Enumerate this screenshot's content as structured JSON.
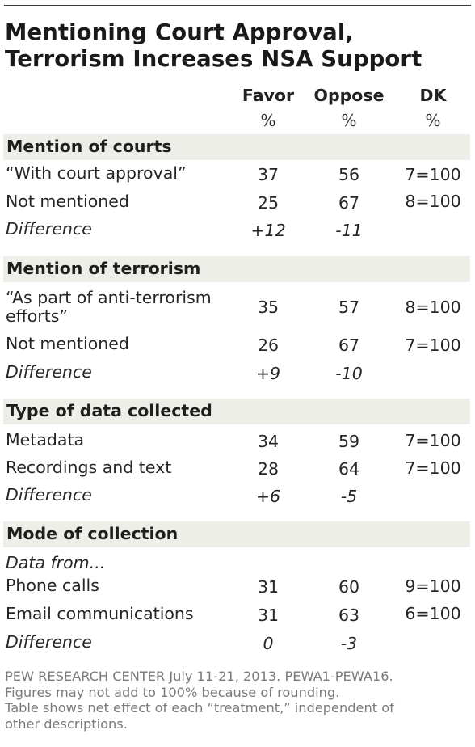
{
  "title": {
    "line1": "Mentioning Court Approval,",
    "line2": "Terrorism Increases NSA Support"
  },
  "columns": {
    "favor": "Favor",
    "oppose": "Oppose",
    "dk": "DK",
    "unit": "%"
  },
  "sections": [
    {
      "label": "Mention of courts",
      "rows": [
        {
          "label": "“With court approval”",
          "favor": "37",
          "oppose": "56",
          "dk": "7=100"
        },
        {
          "label": "Not mentioned",
          "favor": "25",
          "oppose": "67",
          "dk": "8=100"
        },
        {
          "label": "Difference",
          "favor": "+12",
          "oppose": "-11",
          "dk": ""
        }
      ]
    },
    {
      "label": "Mention of terrorism",
      "rows": [
        {
          "label_line1": "“As part of anti-terrorism",
          "label_line2": "efforts”",
          "favor": "35",
          "oppose": "57",
          "dk": "8=100"
        },
        {
          "label": "Not mentioned",
          "favor": "26",
          "oppose": "67",
          "dk": "7=100"
        },
        {
          "label": "Difference",
          "favor": "+9",
          "oppose": "-10",
          "dk": ""
        }
      ]
    },
    {
      "label": "Type of data collected",
      "rows": [
        {
          "label": "Metadata",
          "favor": "34",
          "oppose": "59",
          "dk": "7=100"
        },
        {
          "label": "Recordings and text",
          "favor": "28",
          "oppose": "64",
          "dk": "7=100"
        },
        {
          "label": "Difference",
          "favor": "+6",
          "oppose": "-5",
          "dk": ""
        }
      ]
    },
    {
      "label": "Mode of collection",
      "subheading": "Data from...",
      "rows": [
        {
          "label": "Phone calls",
          "favor": "31",
          "oppose": "60",
          "dk": "9=100"
        },
        {
          "label": "Email communications",
          "favor": "31",
          "oppose": "63",
          "dk": "6=100"
        },
        {
          "label": "Difference",
          "favor": "0",
          "oppose": "-3",
          "dk": ""
        }
      ]
    }
  ],
  "footer": {
    "line1": "PEW RESEARCH  CENTER July 11-21, 2013. PEWA1-PEWA16.",
    "line2": "Figures may not add to 100% because of rounding.",
    "line3": "Table shows net effect of each “treatment,” independent of",
    "line4": "other descriptions."
  },
  "colors": {
    "section_band": "#eeeee8",
    "rule": "#3a3a3a",
    "footer_text": "#7a7a7a"
  },
  "chart_data": {
    "type": "table",
    "title": "Mentioning Court Approval, Terrorism Increases NSA Support",
    "columns": [
      "Favor",
      "Oppose",
      "DK"
    ],
    "unit": "%",
    "groups": [
      {
        "name": "Mention of courts",
        "rows": [
          {
            "label": "“With court approval”",
            "values": [
              37,
              56,
              7
            ]
          },
          {
            "label": "Not mentioned",
            "values": [
              25,
              67,
              8
            ]
          },
          {
            "label": "Difference",
            "values": [
              12,
              -11,
              null
            ]
          }
        ]
      },
      {
        "name": "Mention of terrorism",
        "rows": [
          {
            "label": "“As part of anti-terrorism efforts”",
            "values": [
              35,
              57,
              8
            ]
          },
          {
            "label": "Not mentioned",
            "values": [
              26,
              67,
              7
            ]
          },
          {
            "label": "Difference",
            "values": [
              9,
              -10,
              null
            ]
          }
        ]
      },
      {
        "name": "Type of data collected",
        "rows": [
          {
            "label": "Metadata",
            "values": [
              34,
              59,
              7
            ]
          },
          {
            "label": "Recordings and text",
            "values": [
              28,
              64,
              7
            ]
          },
          {
            "label": "Difference",
            "values": [
              6,
              -5,
              null
            ]
          }
        ]
      },
      {
        "name": "Mode of collection",
        "subheading": "Data from...",
        "rows": [
          {
            "label": "Phone calls",
            "values": [
              31,
              60,
              9
            ]
          },
          {
            "label": "Email communications",
            "values": [
              31,
              63,
              6
            ]
          },
          {
            "label": "Difference",
            "values": [
              0,
              -3,
              null
            ]
          }
        ]
      }
    ]
  }
}
